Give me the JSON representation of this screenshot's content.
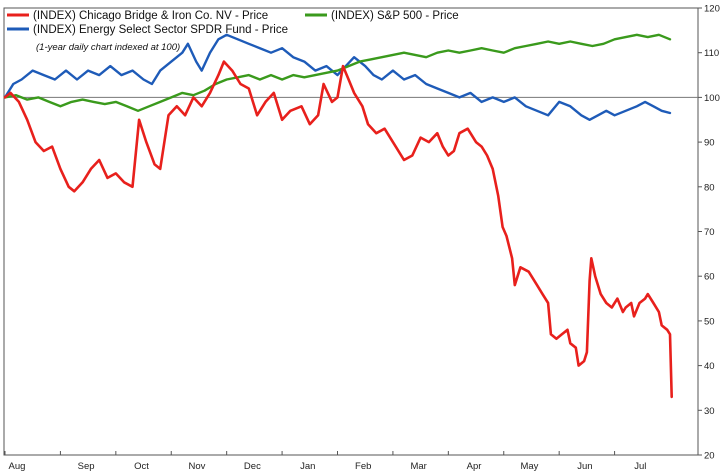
{
  "chart_data": {
    "type": "line",
    "note": "(1-year daily chart indexed at 100)",
    "y_axis": {
      "min": 20,
      "max": 120,
      "ticks": [
        20,
        30,
        40,
        50,
        60,
        70,
        80,
        90,
        100,
        110,
        120
      ],
      "position": "right"
    },
    "x_axis": {
      "min": 0,
      "max": 12,
      "months": [
        {
          "label": "Aug",
          "pos": 0
        },
        {
          "label": "Sep",
          "pos": 1
        },
        {
          "label": "Oct",
          "pos": 2
        },
        {
          "label": "Nov",
          "pos": 3
        },
        {
          "label": "Dec",
          "pos": 4
        },
        {
          "label": "Jan",
          "pos": 5
        },
        {
          "label": "Feb",
          "pos": 6
        },
        {
          "label": "Mar",
          "pos": 7
        },
        {
          "label": "Apr",
          "pos": 8
        },
        {
          "label": "May",
          "pos": 9
        },
        {
          "label": "Jun",
          "pos": 10
        },
        {
          "label": "Jul",
          "pos": 11
        }
      ]
    },
    "reference_line": 100,
    "grid": false,
    "legend": "top-left",
    "series": [
      {
        "name": "(INDEX) Chicago Bridge & Iron Co. NV - Price",
        "color": "#e8201c",
        "points": [
          [
            0,
            100
          ],
          [
            0.1,
            101
          ],
          [
            0.25,
            99
          ],
          [
            0.4,
            95
          ],
          [
            0.55,
            90
          ],
          [
            0.7,
            88
          ],
          [
            0.85,
            89
          ],
          [
            1.0,
            84
          ],
          [
            1.15,
            80
          ],
          [
            1.25,
            79
          ],
          [
            1.4,
            81
          ],
          [
            1.55,
            84
          ],
          [
            1.7,
            86
          ],
          [
            1.85,
            82
          ],
          [
            2.0,
            83
          ],
          [
            2.15,
            81
          ],
          [
            2.3,
            80
          ],
          [
            2.42,
            95
          ],
          [
            2.55,
            90
          ],
          [
            2.7,
            85
          ],
          [
            2.8,
            84
          ],
          [
            2.95,
            96
          ],
          [
            3.1,
            98
          ],
          [
            3.25,
            96
          ],
          [
            3.4,
            100
          ],
          [
            3.55,
            98
          ],
          [
            3.7,
            101
          ],
          [
            3.85,
            105
          ],
          [
            3.95,
            108
          ],
          [
            4.1,
            106
          ],
          [
            4.25,
            103
          ],
          [
            4.4,
            102
          ],
          [
            4.55,
            96
          ],
          [
            4.7,
            99
          ],
          [
            4.85,
            101
          ],
          [
            5.0,
            95
          ],
          [
            5.15,
            97
          ],
          [
            5.35,
            98
          ],
          [
            5.5,
            94
          ],
          [
            5.65,
            96
          ],
          [
            5.75,
            103
          ],
          [
            5.9,
            99
          ],
          [
            6.0,
            100
          ],
          [
            6.1,
            107
          ],
          [
            6.2,
            104
          ],
          [
            6.3,
            101
          ],
          [
            6.45,
            98
          ],
          [
            6.55,
            94
          ],
          [
            6.7,
            92
          ],
          [
            6.85,
            93
          ],
          [
            7.05,
            89
          ],
          [
            7.2,
            86
          ],
          [
            7.35,
            87
          ],
          [
            7.5,
            91
          ],
          [
            7.65,
            90
          ],
          [
            7.8,
            92
          ],
          [
            7.9,
            89
          ],
          [
            8.0,
            87
          ],
          [
            8.1,
            88
          ],
          [
            8.2,
            92
          ],
          [
            8.35,
            93
          ],
          [
            8.5,
            90
          ],
          [
            8.6,
            89
          ],
          [
            8.7,
            87
          ],
          [
            8.8,
            84
          ],
          [
            8.9,
            78
          ],
          [
            8.98,
            71
          ],
          [
            9.05,
            69
          ],
          [
            9.15,
            64
          ],
          [
            9.2,
            58
          ],
          [
            9.3,
            62
          ],
          [
            9.45,
            61
          ],
          [
            9.6,
            58
          ],
          [
            9.7,
            56
          ],
          [
            9.8,
            54
          ],
          [
            9.85,
            47
          ],
          [
            9.95,
            46
          ],
          [
            10.05,
            47
          ],
          [
            10.15,
            48
          ],
          [
            10.2,
            45
          ],
          [
            10.3,
            44
          ],
          [
            10.35,
            40
          ],
          [
            10.45,
            41
          ],
          [
            10.5,
            43
          ],
          [
            10.55,
            59
          ],
          [
            10.58,
            64
          ],
          [
            10.65,
            60
          ],
          [
            10.75,
            56
          ],
          [
            10.85,
            54
          ],
          [
            10.95,
            53
          ],
          [
            11.05,
            55
          ],
          [
            11.15,
            52
          ],
          [
            11.2,
            53
          ],
          [
            11.3,
            54
          ],
          [
            11.35,
            51
          ],
          [
            11.45,
            54
          ],
          [
            11.55,
            55
          ],
          [
            11.6,
            56
          ],
          [
            11.7,
            54
          ],
          [
            11.8,
            52
          ],
          [
            11.85,
            49
          ],
          [
            11.95,
            48
          ],
          [
            12.0,
            47
          ],
          [
            12.03,
            33
          ]
        ]
      },
      {
        "name": "(INDEX) Energy Select Sector SPDR Fund - Price",
        "color": "#1e5bb8",
        "points": [
          [
            0,
            100
          ],
          [
            0.15,
            103
          ],
          [
            0.3,
            104
          ],
          [
            0.5,
            106
          ],
          [
            0.7,
            105
          ],
          [
            0.9,
            104
          ],
          [
            1.1,
            106
          ],
          [
            1.3,
            104
          ],
          [
            1.5,
            106
          ],
          [
            1.7,
            105
          ],
          [
            1.9,
            107
          ],
          [
            2.1,
            105
          ],
          [
            2.3,
            106
          ],
          [
            2.5,
            104
          ],
          [
            2.65,
            103
          ],
          [
            2.8,
            106
          ],
          [
            3.0,
            108
          ],
          [
            3.2,
            110
          ],
          [
            3.3,
            112
          ],
          [
            3.45,
            108
          ],
          [
            3.55,
            106
          ],
          [
            3.7,
            110
          ],
          [
            3.85,
            113
          ],
          [
            4.0,
            114
          ],
          [
            4.2,
            113
          ],
          [
            4.4,
            112
          ],
          [
            4.6,
            111
          ],
          [
            4.8,
            110
          ],
          [
            5.0,
            111
          ],
          [
            5.2,
            109
          ],
          [
            5.4,
            108
          ],
          [
            5.6,
            106
          ],
          [
            5.8,
            107
          ],
          [
            6.0,
            105
          ],
          [
            6.15,
            107
          ],
          [
            6.3,
            109
          ],
          [
            6.5,
            107
          ],
          [
            6.65,
            105
          ],
          [
            6.8,
            104
          ],
          [
            7.0,
            106
          ],
          [
            7.2,
            104
          ],
          [
            7.4,
            105
          ],
          [
            7.6,
            103
          ],
          [
            7.8,
            102
          ],
          [
            8.0,
            101
          ],
          [
            8.2,
            100
          ],
          [
            8.4,
            101
          ],
          [
            8.6,
            99
          ],
          [
            8.8,
            100
          ],
          [
            9.0,
            99
          ],
          [
            9.2,
            100
          ],
          [
            9.4,
            98
          ],
          [
            9.6,
            97
          ],
          [
            9.8,
            96
          ],
          [
            10.0,
            99
          ],
          [
            10.2,
            98
          ],
          [
            10.4,
            96
          ],
          [
            10.55,
            95
          ],
          [
            10.7,
            96
          ],
          [
            10.85,
            97
          ],
          [
            11.0,
            96
          ],
          [
            11.2,
            97
          ],
          [
            11.4,
            98
          ],
          [
            11.55,
            99
          ],
          [
            11.7,
            98
          ],
          [
            11.85,
            97
          ],
          [
            12.0,
            96.5
          ]
        ]
      },
      {
        "name": "(INDEX) S&P 500 - Price",
        "color": "#3a9a1c",
        "points": [
          [
            0,
            100
          ],
          [
            0.2,
            100.5
          ],
          [
            0.4,
            99.5
          ],
          [
            0.6,
            100
          ],
          [
            0.8,
            99
          ],
          [
            1.0,
            98
          ],
          [
            1.2,
            99
          ],
          [
            1.4,
            99.5
          ],
          [
            1.6,
            99
          ],
          [
            1.8,
            98.5
          ],
          [
            2.0,
            99
          ],
          [
            2.2,
            98
          ],
          [
            2.4,
            97
          ],
          [
            2.6,
            98
          ],
          [
            2.8,
            99
          ],
          [
            3.0,
            100
          ],
          [
            3.2,
            101
          ],
          [
            3.4,
            100.5
          ],
          [
            3.6,
            101.5
          ],
          [
            3.8,
            103
          ],
          [
            4.0,
            104
          ],
          [
            4.2,
            104.5
          ],
          [
            4.4,
            105
          ],
          [
            4.6,
            104
          ],
          [
            4.8,
            105
          ],
          [
            5.0,
            104
          ],
          [
            5.2,
            105
          ],
          [
            5.4,
            104.5
          ],
          [
            5.6,
            105
          ],
          [
            5.8,
            105.5
          ],
          [
            6.0,
            106
          ],
          [
            6.2,
            107
          ],
          [
            6.4,
            108
          ],
          [
            6.6,
            108.5
          ],
          [
            6.8,
            109
          ],
          [
            7.0,
            109.5
          ],
          [
            7.2,
            110
          ],
          [
            7.4,
            109.5
          ],
          [
            7.6,
            109
          ],
          [
            7.8,
            110
          ],
          [
            8.0,
            110.5
          ],
          [
            8.2,
            110
          ],
          [
            8.4,
            110.5
          ],
          [
            8.6,
            111
          ],
          [
            8.8,
            110.5
          ],
          [
            9.0,
            110
          ],
          [
            9.2,
            111
          ],
          [
            9.4,
            111.5
          ],
          [
            9.6,
            112
          ],
          [
            9.8,
            112.5
          ],
          [
            10.0,
            112
          ],
          [
            10.2,
            112.5
          ],
          [
            10.4,
            112
          ],
          [
            10.6,
            111.5
          ],
          [
            10.8,
            112
          ],
          [
            11.0,
            113
          ],
          [
            11.2,
            113.5
          ],
          [
            11.4,
            114
          ],
          [
            11.6,
            113.5
          ],
          [
            11.8,
            114
          ],
          [
            12.0,
            113
          ]
        ]
      }
    ]
  }
}
